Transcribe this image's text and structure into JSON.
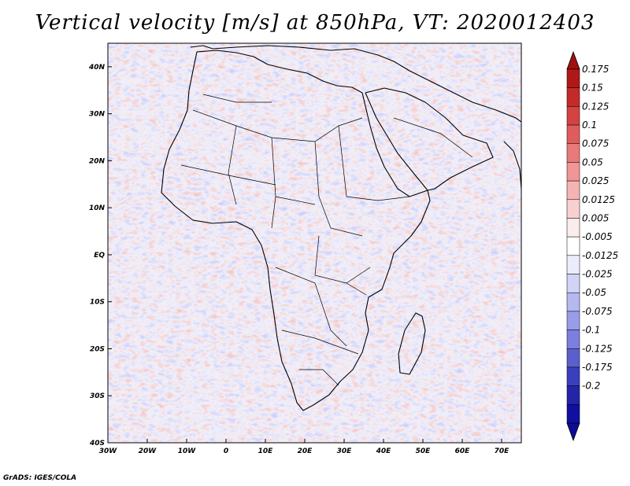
{
  "title": "Vertical velocity [m/s] at 850hPa, VT: 2020012403",
  "footer": "GrADS: IGES/COLA",
  "colors": {
    "land_border": "#000000",
    "frame": "#000000",
    "pos_strong": "#a00000",
    "neg_strong": "#1a1aa0"
  },
  "chart_data": {
    "type": "heatmap",
    "title": "Vertical velocity [m/s] at 850hPa, VT: 2020012403",
    "variable": "Vertical velocity",
    "units": "m/s",
    "level": "850hPa",
    "valid_time": "2020012403",
    "xlabel": "",
    "ylabel": "",
    "xlim": [
      -30,
      75
    ],
    "ylim": [
      -40,
      45
    ],
    "x_ticks": [
      {
        "value": -30,
        "label": "30W"
      },
      {
        "value": -20,
        "label": "20W"
      },
      {
        "value": -10,
        "label": "10W"
      },
      {
        "value": 0,
        "label": "0"
      },
      {
        "value": 10,
        "label": "10E"
      },
      {
        "value": 20,
        "label": "20E"
      },
      {
        "value": 30,
        "label": "30E"
      },
      {
        "value": 40,
        "label": "40E"
      },
      {
        "value": 50,
        "label": "50E"
      },
      {
        "value": 60,
        "label": "60E"
      },
      {
        "value": 70,
        "label": "70E"
      }
    ],
    "y_ticks": [
      {
        "value": 40,
        "label": "40N"
      },
      {
        "value": 30,
        "label": "30N"
      },
      {
        "value": 20,
        "label": "20N"
      },
      {
        "value": 10,
        "label": "10N"
      },
      {
        "value": 0,
        "label": "EQ"
      },
      {
        "value": -10,
        "label": "10S"
      },
      {
        "value": -20,
        "label": "20S"
      },
      {
        "value": -30,
        "label": "30S"
      },
      {
        "value": -40,
        "label": "40S"
      }
    ],
    "colorbar": {
      "labels": [
        "0.175",
        "0.15",
        "0.125",
        "0.1",
        "0.075",
        "0.05",
        "0.025",
        "0.0125",
        "0.005",
        "-0.005",
        "-0.0125",
        "-0.025",
        "-0.05",
        "-0.075",
        "-0.1",
        "-0.125",
        "-0.175",
        "-0.2"
      ],
      "colors": [
        "#b01818",
        "#c52a2a",
        "#d44242",
        "#e05c5c",
        "#e97a7a",
        "#f09696",
        "#f5b4b4",
        "#f9d0d0",
        "#fcecec",
        "#ffffff",
        "#ecedfc",
        "#d2d4f7",
        "#b6b9f0",
        "#999ce8",
        "#7b7fdd",
        "#5b5fce",
        "#3c3fbd",
        "#2424a8",
        "#1010a0"
      ],
      "over_color": "#a01010",
      "under_color": "#0c0c96"
    }
  }
}
